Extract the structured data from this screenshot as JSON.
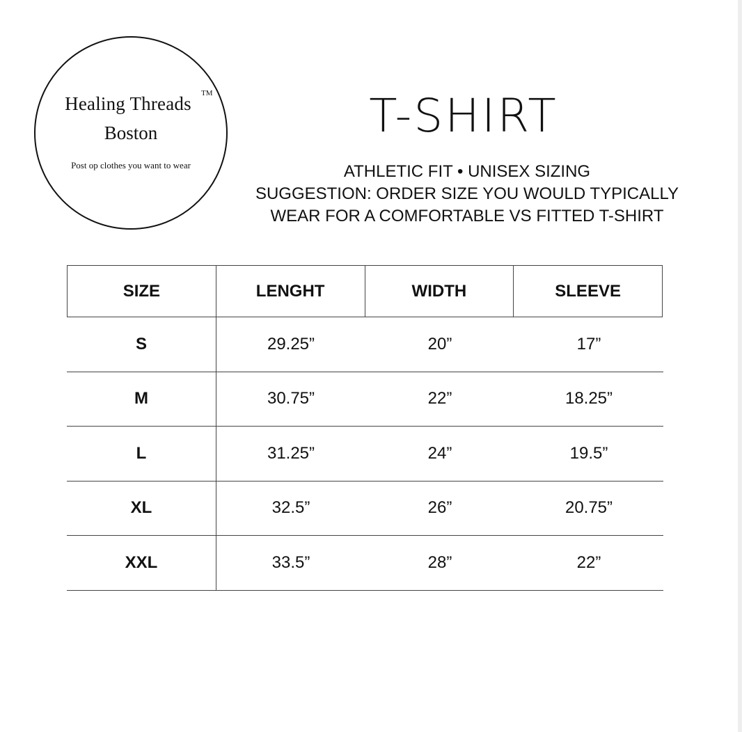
{
  "logo": {
    "line1": "Healing Threads",
    "trademark": "TM",
    "line2": "Boston",
    "tagline": "Post op clothes you want to wear"
  },
  "title": "T-SHIRT",
  "subtitle": [
    "ATHLETIC FIT • UNISEX SIZING",
    "SUGGESTION: ORDER SIZE YOU WOULD TYPICALLY",
    "WEAR FOR A COMFORTABLE VS FITTED T-SHIRT"
  ],
  "table": {
    "headers": [
      "SIZE",
      "LENGHT",
      "WIDTH",
      "SLEEVE"
    ],
    "rows": [
      [
        "S",
        "29.25”",
        "20”",
        "17”"
      ],
      [
        "M",
        "30.75”",
        "22”",
        "18.25”"
      ],
      [
        "L",
        "31.25”",
        "24”",
        "19.5”"
      ],
      [
        "XL",
        "32.5”",
        "26”",
        "20.75”"
      ],
      [
        "XXL",
        "33.5”",
        "28”",
        "22”"
      ]
    ]
  }
}
